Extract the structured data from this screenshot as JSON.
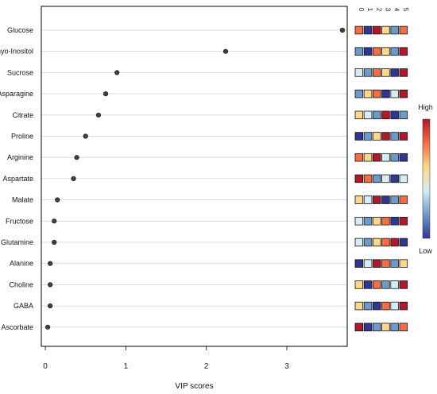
{
  "chart_data": {
    "type": "scatter",
    "title": "",
    "xlabel": "VIP scores",
    "ylabel": "",
    "xlim": [
      -0.05,
      3.75
    ],
    "xticks": [
      0,
      1,
      2,
      3
    ],
    "grid": "horizontal",
    "categories": [
      "Glucose",
      "myo-Inositol",
      "Sucrose",
      "Asparagine",
      "Citrate",
      "Proline",
      "Arginine",
      "Aspartate",
      "Malate",
      "Fructose",
      "Glutamine",
      "Alanine",
      "Choline",
      "GABA",
      "Ascorbate"
    ],
    "values": [
      3.69,
      2.24,
      0.89,
      0.75,
      0.66,
      0.5,
      0.39,
      0.35,
      0.15,
      0.11,
      0.11,
      0.06,
      0.06,
      0.06,
      0.03
    ],
    "heatmap": {
      "group_labels": [
        "0",
        "1",
        "2",
        "3",
        "4",
        "5"
      ],
      "levels": [
        [
          5,
          1,
          6,
          4,
          2,
          5
        ],
        [
          2,
          1,
          5,
          4,
          2,
          6
        ],
        [
          3,
          2,
          5,
          4,
          1,
          6
        ],
        [
          2,
          4,
          5,
          1,
          3,
          6
        ],
        [
          4,
          3,
          2,
          6,
          1,
          2
        ],
        [
          1,
          2,
          4,
          6,
          2,
          6
        ],
        [
          5,
          4,
          6,
          3,
          2,
          1
        ],
        [
          6,
          5,
          2,
          3,
          1,
          3
        ],
        [
          4,
          3,
          6,
          1,
          2,
          5
        ],
        [
          3,
          2,
          4,
          5,
          1,
          6
        ],
        [
          3,
          2,
          4,
          5,
          6,
          1
        ],
        [
          1,
          3,
          6,
          5,
          2,
          4
        ],
        [
          4,
          1,
          5,
          2,
          3,
          6
        ],
        [
          4,
          2,
          1,
          5,
          3,
          6
        ],
        [
          6,
          1,
          2,
          4,
          2,
          5
        ]
      ],
      "palette": [
        "#313695",
        "#6e9ac9",
        "#d6ecf3",
        "#fdd889",
        "#f46d43",
        "#b2182b"
      ],
      "legend_high": "High",
      "legend_low": "Low"
    },
    "colors": {
      "point": "#404040",
      "point_stroke": "#111111",
      "gridline": "#d3d3d3",
      "frame": "#000000"
    }
  }
}
